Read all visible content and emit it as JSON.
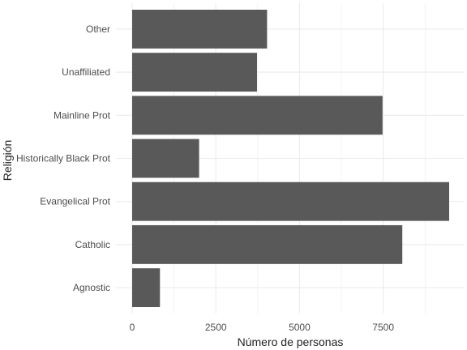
{
  "chart_data": {
    "type": "bar",
    "orientation": "horizontal",
    "categories": [
      "Agnostic",
      "Catholic",
      "Evangelical Prot",
      "Historically Black Prot",
      "Mainline Prot",
      "Unaffiliated",
      "Other"
    ],
    "values": [
      830,
      8070,
      9470,
      2000,
      7480,
      3730,
      4030
    ],
    "xlabel": "Número de personas",
    "ylabel": "Religión",
    "xticks": [
      0,
      2500,
      5000,
      7500
    ],
    "xtick_labels": [
      "0",
      "2500",
      "5000",
      "7500"
    ],
    "xlim": [
      0,
      9470
    ],
    "grid": true,
    "bar_color": "#595959",
    "grid_color": "#ebebeb"
  }
}
